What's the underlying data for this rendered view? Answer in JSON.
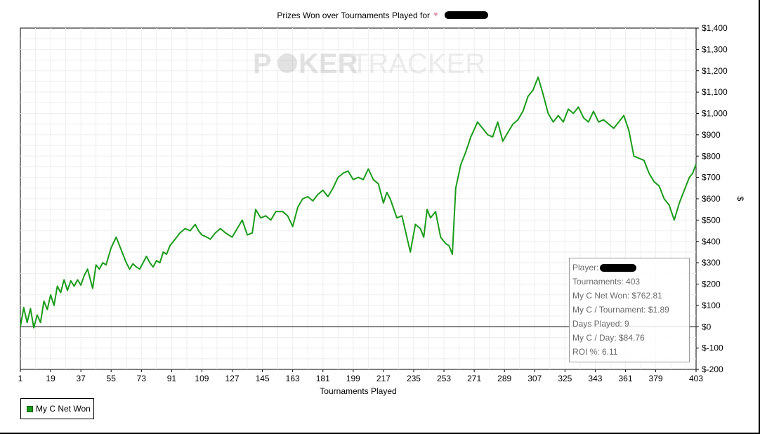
{
  "title": "Prizes Won over Tournaments Played for",
  "watermark": {
    "part1": "P",
    "part2": "KER",
    "part3": "TRACKER"
  },
  "legend": {
    "label": "My C Net Won",
    "color": "#1a9c1a"
  },
  "stats": {
    "player_label": "Player:",
    "tournaments": "Tournaments: 403",
    "net_won": "My C Net Won: $762.81",
    "per_tournament": "My C / Tournament: $1.89",
    "days_played": "Days Played: 9",
    "per_day": "My C / Day: $84.76",
    "roi": "ROI %: 6.11"
  },
  "chart_data": {
    "type": "line",
    "title": "Prizes Won over Tournaments Played for",
    "xlabel": "Tournaments Played",
    "ylabel": "$",
    "xlim": [
      1,
      403
    ],
    "ylim": [
      -200,
      1400
    ],
    "x_ticks": [
      1,
      19,
      37,
      55,
      73,
      91,
      109,
      127,
      145,
      163,
      181,
      199,
      217,
      235,
      253,
      271,
      289,
      307,
      325,
      343,
      361,
      379,
      403
    ],
    "y_ticks": [
      -200,
      -100,
      0,
      100,
      200,
      300,
      400,
      500,
      600,
      700,
      800,
      900,
      1000,
      1100,
      1200,
      1300,
      1400
    ],
    "y_tick_labels": [
      "$-200",
      "$-100",
      "$0",
      "$100",
      "$200",
      "$300",
      "$400",
      "$500",
      "$600",
      "$700",
      "$800",
      "$900",
      "$1,000",
      "$1,100",
      "$1,200",
      "$1,300",
      "$1,400"
    ],
    "grid": true,
    "legend_position": "bottom-left",
    "series": [
      {
        "name": "My C Net Won",
        "color": "#1a9c1a",
        "points": [
          [
            1,
            0
          ],
          [
            3,
            90
          ],
          [
            5,
            20
          ],
          [
            7,
            85
          ],
          [
            9,
            -5
          ],
          [
            11,
            55
          ],
          [
            13,
            20
          ],
          [
            15,
            120
          ],
          [
            17,
            80
          ],
          [
            19,
            150
          ],
          [
            21,
            100
          ],
          [
            23,
            190
          ],
          [
            25,
            160
          ],
          [
            27,
            220
          ],
          [
            29,
            170
          ],
          [
            31,
            215
          ],
          [
            33,
            190
          ],
          [
            35,
            220
          ],
          [
            37,
            195
          ],
          [
            39,
            240
          ],
          [
            41,
            270
          ],
          [
            44,
            180
          ],
          [
            46,
            290
          ],
          [
            48,
            270
          ],
          [
            50,
            300
          ],
          [
            52,
            290
          ],
          [
            55,
            370
          ],
          [
            58,
            420
          ],
          [
            61,
            360
          ],
          [
            64,
            300
          ],
          [
            66,
            270
          ],
          [
            68,
            295
          ],
          [
            70,
            280
          ],
          [
            72,
            270
          ],
          [
            74,
            300
          ],
          [
            76,
            330
          ],
          [
            78,
            300
          ],
          [
            80,
            280
          ],
          [
            82,
            310
          ],
          [
            84,
            300
          ],
          [
            86,
            350
          ],
          [
            88,
            340
          ],
          [
            90,
            380
          ],
          [
            93,
            410
          ],
          [
            96,
            440
          ],
          [
            99,
            460
          ],
          [
            102,
            450
          ],
          [
            105,
            480
          ],
          [
            107,
            450
          ],
          [
            109,
            430
          ],
          [
            112,
            420
          ],
          [
            114,
            410
          ],
          [
            117,
            440
          ],
          [
            120,
            460
          ],
          [
            123,
            440
          ],
          [
            127,
            420
          ],
          [
            130,
            460
          ],
          [
            133,
            500
          ],
          [
            136,
            430
          ],
          [
            139,
            440
          ],
          [
            141,
            550
          ],
          [
            144,
            510
          ],
          [
            147,
            520
          ],
          [
            150,
            500
          ],
          [
            153,
            540
          ],
          [
            157,
            540
          ],
          [
            160,
            520
          ],
          [
            163,
            470
          ],
          [
            166,
            560
          ],
          [
            169,
            600
          ],
          [
            172,
            610
          ],
          [
            175,
            590
          ],
          [
            178,
            620
          ],
          [
            181,
            640
          ],
          [
            184,
            610
          ],
          [
            187,
            650
          ],
          [
            190,
            700
          ],
          [
            193,
            720
          ],
          [
            196,
            730
          ],
          [
            199,
            690
          ],
          [
            202,
            700
          ],
          [
            205,
            690
          ],
          [
            208,
            740
          ],
          [
            211,
            690
          ],
          [
            214,
            670
          ],
          [
            217,
            580
          ],
          [
            219,
            630
          ],
          [
            221,
            600
          ],
          [
            225,
            510
          ],
          [
            228,
            520
          ],
          [
            233,
            350
          ],
          [
            236,
            480
          ],
          [
            239,
            460
          ],
          [
            241,
            420
          ],
          [
            243,
            550
          ],
          [
            245,
            510
          ],
          [
            248,
            540
          ],
          [
            251,
            420
          ],
          [
            254,
            390
          ],
          [
            256,
            380
          ],
          [
            258,
            340
          ],
          [
            260,
            650
          ],
          [
            263,
            760
          ],
          [
            266,
            820
          ],
          [
            269,
            890
          ],
          [
            273,
            960
          ],
          [
            276,
            930
          ],
          [
            279,
            900
          ],
          [
            282,
            890
          ],
          [
            285,
            960
          ],
          [
            288,
            870
          ],
          [
            291,
            910
          ],
          [
            294,
            950
          ],
          [
            297,
            970
          ],
          [
            300,
            1010
          ],
          [
            303,
            1080
          ],
          [
            306,
            1110
          ],
          [
            309,
            1170
          ],
          [
            312,
            1090
          ],
          [
            315,
            1000
          ],
          [
            318,
            960
          ],
          [
            321,
            990
          ],
          [
            324,
            960
          ],
          [
            327,
            1020
          ],
          [
            330,
            1000
          ],
          [
            333,
            1030
          ],
          [
            336,
            980
          ],
          [
            339,
            960
          ],
          [
            342,
            1010
          ],
          [
            345,
            960
          ],
          [
            348,
            970
          ],
          [
            351,
            950
          ],
          [
            354,
            930
          ],
          [
            357,
            960
          ],
          [
            360,
            990
          ],
          [
            363,
            920
          ],
          [
            366,
            800
          ],
          [
            369,
            790
          ],
          [
            372,
            780
          ],
          [
            375,
            720
          ],
          [
            378,
            680
          ],
          [
            381,
            660
          ],
          [
            384,
            600
          ],
          [
            387,
            570
          ],
          [
            390,
            500
          ],
          [
            393,
            580
          ],
          [
            396,
            640
          ],
          [
            399,
            700
          ],
          [
            401,
            720
          ],
          [
            403,
            762.81
          ]
        ]
      }
    ]
  }
}
